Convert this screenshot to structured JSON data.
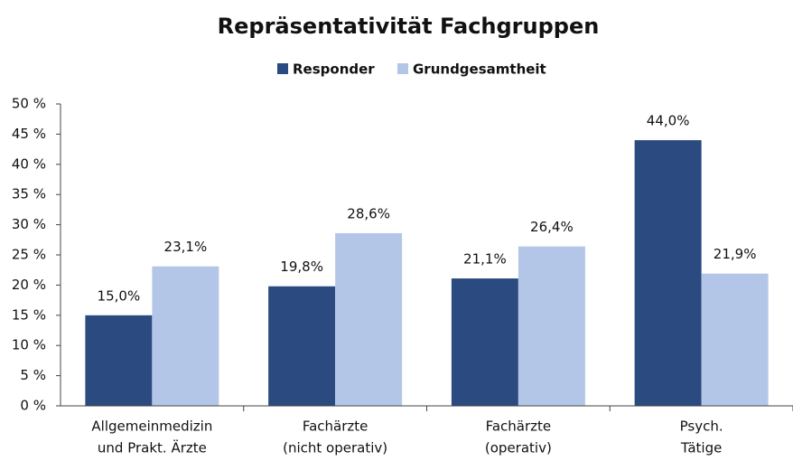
{
  "chart_data": {
    "type": "bar",
    "title": "Repräsentativität Fachgruppen",
    "categories": [
      [
        "Allgemeinmedizin",
        "und Prakt. Ärzte"
      ],
      [
        "Fachärzte",
        "(nicht operativ)"
      ],
      [
        "Fachärzte",
        "(operativ)"
      ],
      [
        "Psych.",
        "Tätige"
      ]
    ],
    "series": [
      {
        "name": "Responder",
        "color": "#2a4a80",
        "values": [
          15.0,
          19.8,
          21.1,
          44.0
        ],
        "value_labels": [
          "15,0%",
          "19,8%",
          "21,1%",
          "44,0%"
        ]
      },
      {
        "name": "Grundgesamtheit",
        "color": "#b4c6e7",
        "values": [
          23.1,
          28.6,
          26.4,
          21.9
        ],
        "value_labels": [
          "23,1%",
          "28,6%",
          "26,4%",
          "21,9%"
        ]
      }
    ],
    "ylim": [
      0,
      50
    ],
    "yticks": [
      {
        "value": 0,
        "label": "0 %"
      },
      {
        "value": 5,
        "label": "5 %"
      },
      {
        "value": 10,
        "label": "10 %"
      },
      {
        "value": 15,
        "label": "15 %"
      },
      {
        "value": 20,
        "label": "20 %"
      },
      {
        "value": 25,
        "label": "25 %"
      },
      {
        "value": 30,
        "label": "30 %"
      },
      {
        "value": 35,
        "label": "35 %"
      },
      {
        "value": 40,
        "label": "40 %"
      },
      {
        "value": 45,
        "label": "45 %"
      },
      {
        "value": 50,
        "label": "50 %"
      }
    ],
    "legend": "top",
    "grid": false
  }
}
